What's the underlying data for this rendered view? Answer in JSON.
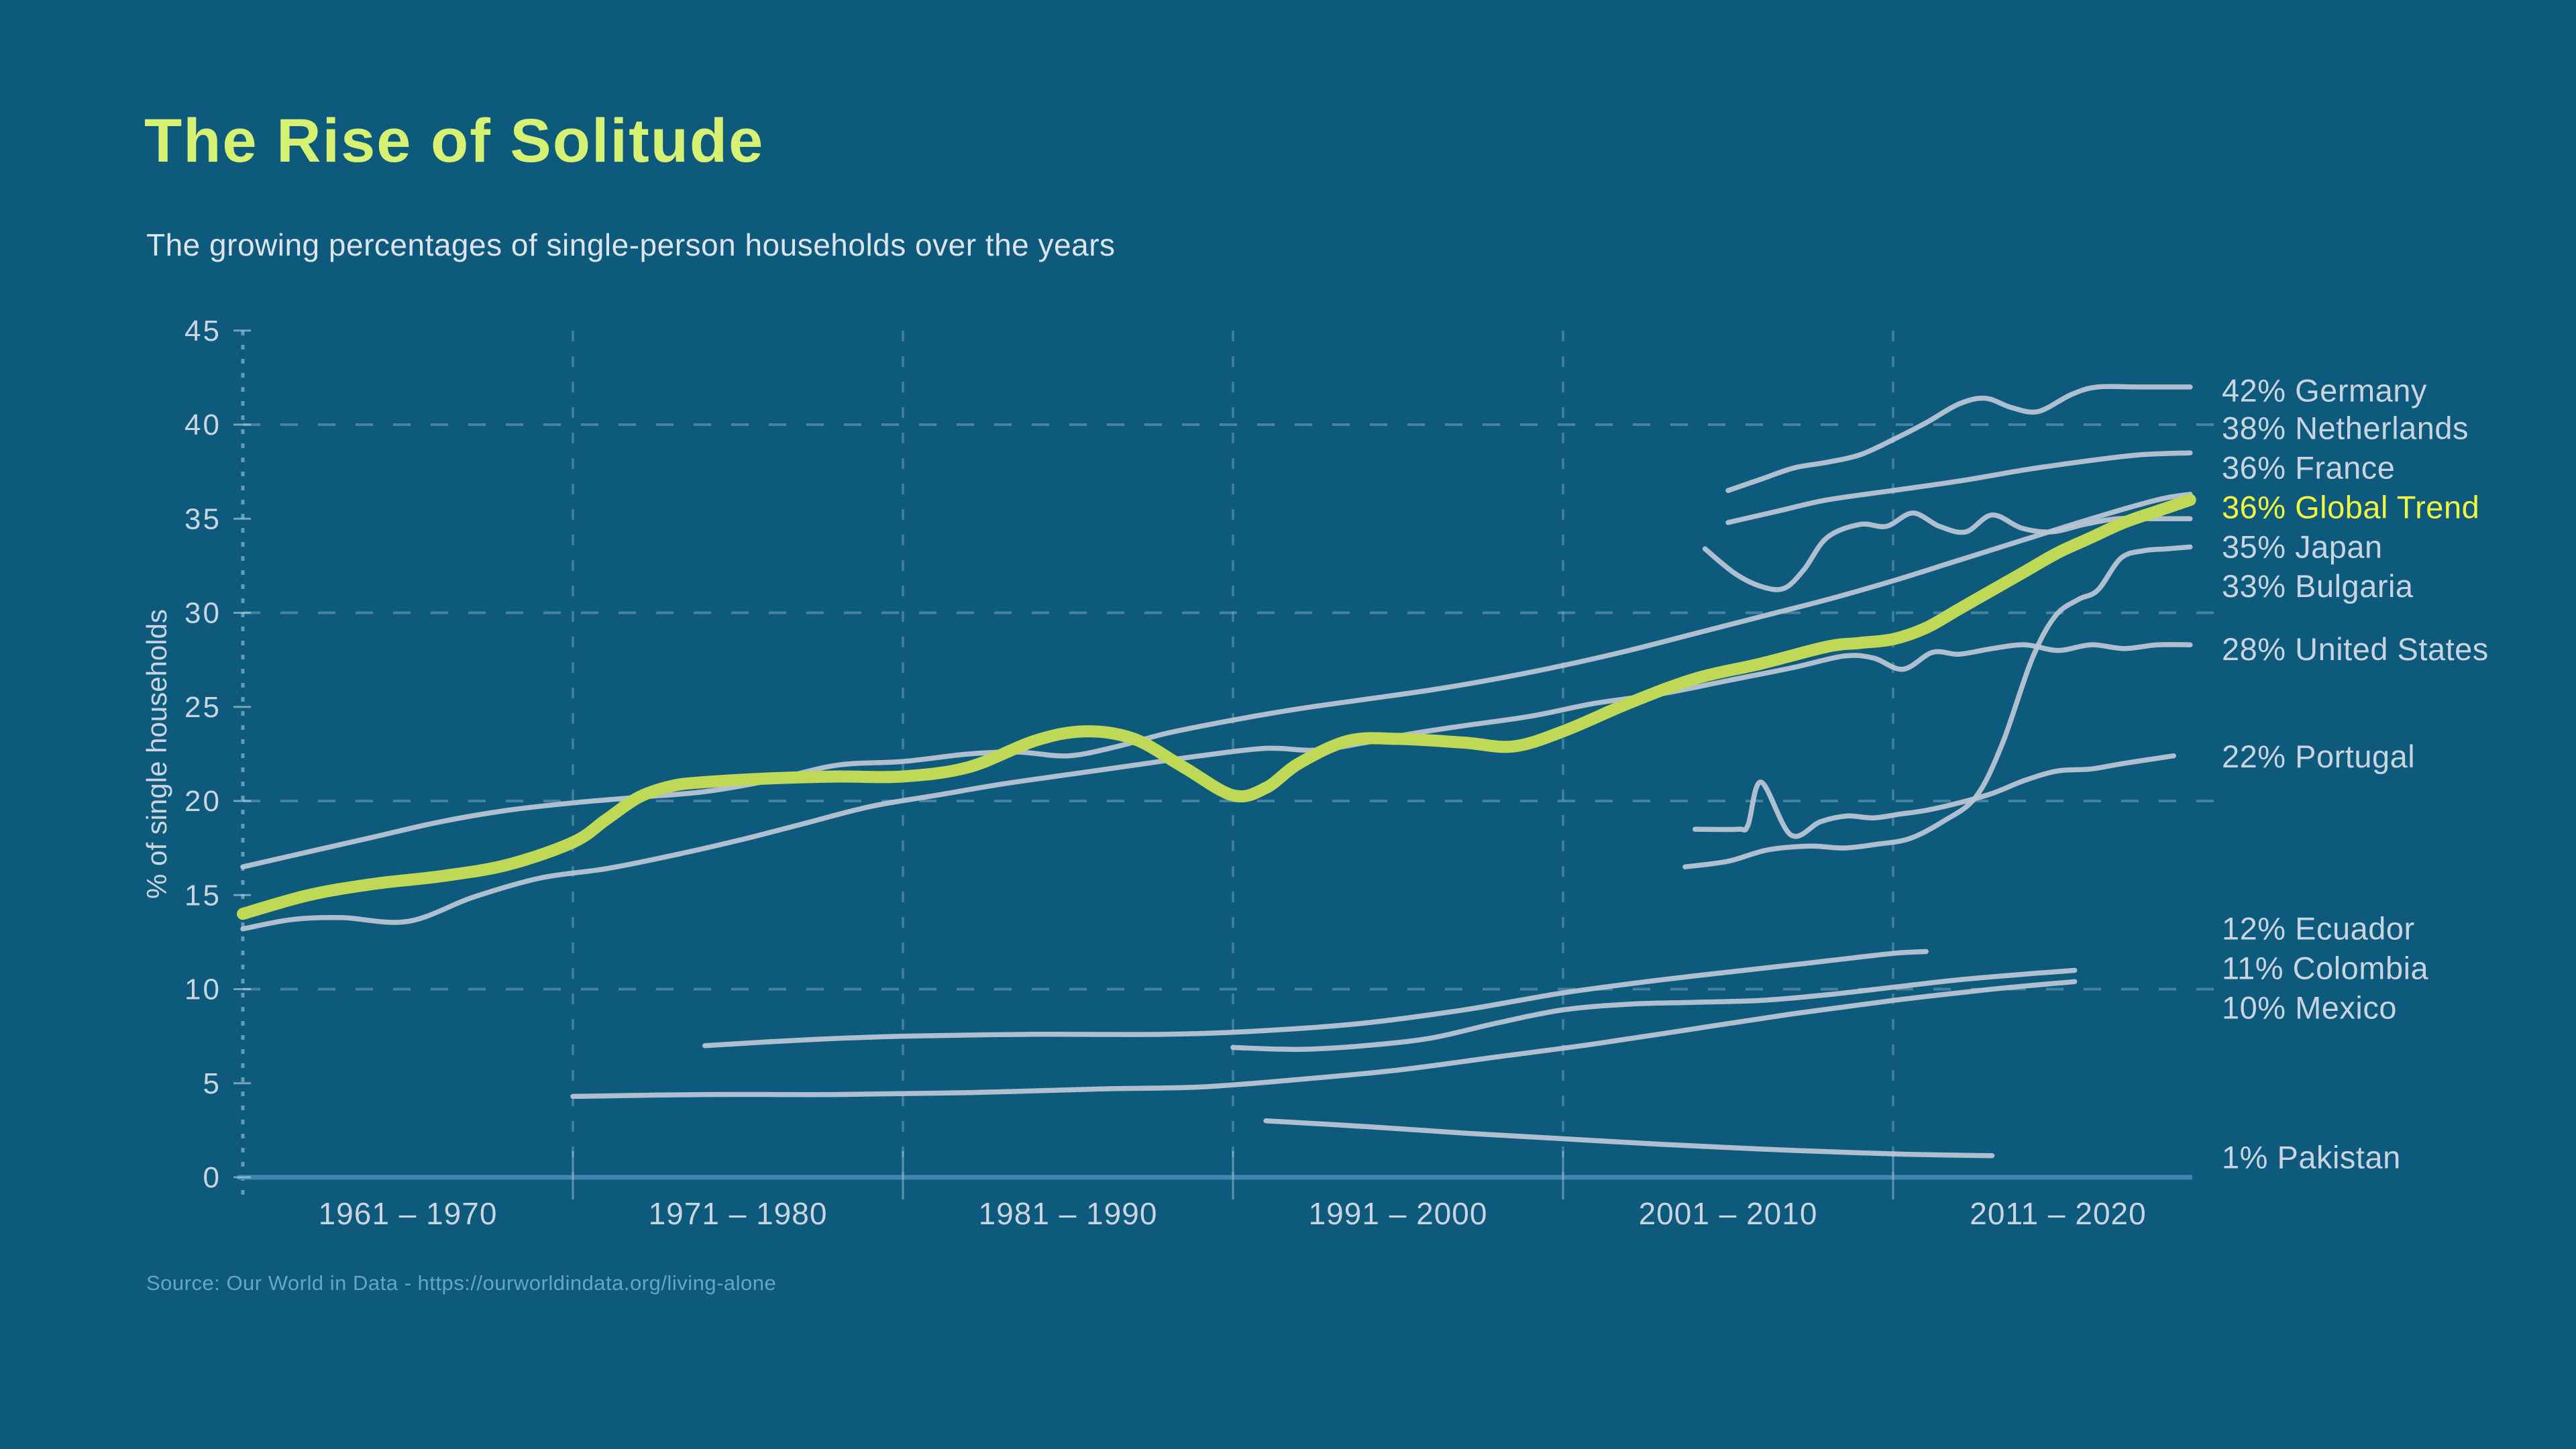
{
  "header": {
    "title": "The Rise of Solitude",
    "subtitle": "The growing percentages of single-person households over the years"
  },
  "footer": {
    "source": "Source: Our  World in Data - https://ourworldindata.org/living-alone"
  },
  "colors": {
    "background": "#0d5a7d",
    "title": "#d7f173",
    "subtitle": "#dde4ed",
    "axis_text": "#cad5e1",
    "grid_dash": "#8fb6cd",
    "axis_line": "#3e86ad",
    "tick": "#bed3e2",
    "line_gray": "#b9c5d4",
    "line_highlight": "#bfd957",
    "label_gray": "#c9d4e0",
    "label_highlight": "#f4f83f",
    "source": "#67a5c7"
  },
  "chart_data": {
    "type": "line",
    "title": "The Rise of Solitude",
    "xlabel": "",
    "ylabel": "% of single households",
    "ylim": [
      0,
      45
    ],
    "yticks": [
      0,
      5,
      10,
      15,
      20,
      25,
      30,
      35,
      40,
      45
    ],
    "grid_y": [
      10,
      20,
      30,
      40
    ],
    "grid_x_years": [
      1971,
      1981,
      1991,
      2001,
      2011
    ],
    "x_decade_labels": [
      "1961 – 1970",
      "1971 – 1980",
      "1981 – 1990",
      "1991 – 2000",
      "2001 – 2010",
      "2011 – 2020"
    ],
    "x_range_years": [
      1961,
      2020
    ],
    "legend_position": "right-edge-labels",
    "grid": true,
    "series": [
      {
        "name": "Germany",
        "label": "42% Germany",
        "final_value": 42,
        "highlight": false,
        "label_pct": 41.8,
        "points": [
          [
            2006,
            36.5
          ],
          [
            2007,
            37.1
          ],
          [
            2008,
            37.7
          ],
          [
            2009,
            38.0
          ],
          [
            2010,
            38.4
          ],
          [
            2011,
            39.2
          ],
          [
            2012,
            40.1
          ],
          [
            2013,
            41.1
          ],
          [
            2013.8,
            41.4
          ],
          [
            2014.6,
            40.9
          ],
          [
            2015.4,
            40.7
          ],
          [
            2016.4,
            41.6
          ],
          [
            2017.2,
            42.0
          ],
          [
            2018.5,
            42.0
          ],
          [
            2020,
            42.0
          ]
        ]
      },
      {
        "name": "Netherlands",
        "label": "38% Netherlands",
        "final_value": 38,
        "highlight": false,
        "label_pct": 39.8,
        "points": [
          [
            2006,
            34.8
          ],
          [
            2007.5,
            35.4
          ],
          [
            2009,
            36.0
          ],
          [
            2011,
            36.5
          ],
          [
            2013,
            37.0
          ],
          [
            2015,
            37.6
          ],
          [
            2017,
            38.1
          ],
          [
            2018.5,
            38.4
          ],
          [
            2020,
            38.5
          ]
        ]
      },
      {
        "name": "France",
        "label": "36% France",
        "final_value": 36,
        "highlight": false,
        "label_pct": 37.7,
        "points": [
          [
            1961,
            16.5
          ],
          [
            1963,
            17.3
          ],
          [
            1965,
            18.1
          ],
          [
            1967,
            18.9
          ],
          [
            1969,
            19.5
          ],
          [
            1971,
            19.9
          ],
          [
            1973,
            20.2
          ],
          [
            1975,
            20.5
          ],
          [
            1977,
            21.1
          ],
          [
            1979,
            21.9
          ],
          [
            1981,
            22.1
          ],
          [
            1983,
            22.5
          ],
          [
            1984.5,
            22.6
          ],
          [
            1986,
            22.4
          ],
          [
            1987.5,
            22.9
          ],
          [
            1989,
            23.6
          ],
          [
            1991,
            24.3
          ],
          [
            1993,
            24.9
          ],
          [
            1995,
            25.4
          ],
          [
            1997,
            25.9
          ],
          [
            1999,
            26.5
          ],
          [
            2001,
            27.2
          ],
          [
            2003,
            28.0
          ],
          [
            2005,
            28.9
          ],
          [
            2007,
            29.8
          ],
          [
            2009,
            30.7
          ],
          [
            2011,
            31.7
          ],
          [
            2013,
            32.8
          ],
          [
            2015,
            33.9
          ],
          [
            2017,
            35.0
          ],
          [
            2019,
            36.0
          ],
          [
            2020,
            36.3
          ]
        ]
      },
      {
        "name": "Global Trend",
        "label": "36% Global Trend",
        "final_value": 36,
        "highlight": true,
        "label_pct": 35.6,
        "points": [
          [
            1961,
            14.0
          ],
          [
            1963,
            15.0
          ],
          [
            1965,
            15.6
          ],
          [
            1967,
            16.0
          ],
          [
            1969,
            16.6
          ],
          [
            1971,
            17.8
          ],
          [
            1972,
            19.0
          ],
          [
            1973,
            20.2
          ],
          [
            1974,
            20.8
          ],
          [
            1975,
            21.0
          ],
          [
            1977,
            21.2
          ],
          [
            1979,
            21.3
          ],
          [
            1981,
            21.3
          ],
          [
            1983,
            21.8
          ],
          [
            1985,
            23.2
          ],
          [
            1986.5,
            23.7
          ],
          [
            1988,
            23.3
          ],
          [
            1989.5,
            21.8
          ],
          [
            1991,
            20.3
          ],
          [
            1992,
            20.7
          ],
          [
            1993,
            22.0
          ],
          [
            1994.5,
            23.2
          ],
          [
            1996,
            23.3
          ],
          [
            1998,
            23.1
          ],
          [
            1999.5,
            22.9
          ],
          [
            2001,
            23.7
          ],
          [
            2003,
            25.2
          ],
          [
            2005,
            26.5
          ],
          [
            2007,
            27.3
          ],
          [
            2009,
            28.2
          ],
          [
            2010,
            28.4
          ],
          [
            2011,
            28.6
          ],
          [
            2012,
            29.2
          ],
          [
            2013,
            30.2
          ],
          [
            2014,
            31.2
          ],
          [
            2015,
            32.2
          ],
          [
            2016,
            33.2
          ],
          [
            2017,
            34.0
          ],
          [
            2018,
            34.8
          ],
          [
            2019,
            35.4
          ],
          [
            2020,
            36.0
          ]
        ]
      },
      {
        "name": "Japan",
        "label": "35% Japan",
        "final_value": 35,
        "highlight": false,
        "label_pct": 33.5,
        "points": [
          [
            2005.3,
            33.4
          ],
          [
            2006.2,
            32.1
          ],
          [
            2007,
            31.4
          ],
          [
            2007.7,
            31.3
          ],
          [
            2008.3,
            32.3
          ],
          [
            2009,
            34.0
          ],
          [
            2010,
            34.7
          ],
          [
            2010.8,
            34.6
          ],
          [
            2011.6,
            35.3
          ],
          [
            2012.4,
            34.6
          ],
          [
            2013.2,
            34.3
          ],
          [
            2014,
            35.2
          ],
          [
            2014.9,
            34.5
          ],
          [
            2015.8,
            34.3
          ],
          [
            2016.8,
            34.7
          ],
          [
            2017.8,
            35.0
          ],
          [
            2019,
            35.0
          ],
          [
            2020,
            35.0
          ]
        ]
      },
      {
        "name": "Bulgaria",
        "label": "33% Bulgaria",
        "final_value": 33,
        "highlight": false,
        "label_pct": 31.4,
        "points": [
          [
            2004.7,
            16.5
          ],
          [
            2006,
            16.8
          ],
          [
            2007.2,
            17.4
          ],
          [
            2008.5,
            17.6
          ],
          [
            2009.5,
            17.5
          ],
          [
            2010.5,
            17.7
          ],
          [
            2011.5,
            18.0
          ],
          [
            2012.5,
            18.9
          ],
          [
            2013.5,
            20.2
          ],
          [
            2014.3,
            23.0
          ],
          [
            2015.2,
            27.5
          ],
          [
            2015.9,
            29.8
          ],
          [
            2016.6,
            30.7
          ],
          [
            2017.2,
            31.2
          ],
          [
            2017.9,
            32.9
          ],
          [
            2018.6,
            33.3
          ],
          [
            2019.3,
            33.4
          ],
          [
            2020,
            33.5
          ]
        ]
      },
      {
        "name": "United States",
        "label": "28% United States",
        "final_value": 28,
        "highlight": false,
        "label_pct": 28.05,
        "points": [
          [
            1961,
            13.2
          ],
          [
            1962.5,
            13.7
          ],
          [
            1964,
            13.8
          ],
          [
            1966,
            13.6
          ],
          [
            1968,
            14.9
          ],
          [
            1970,
            15.9
          ],
          [
            1972,
            16.4
          ],
          [
            1974,
            17.1
          ],
          [
            1976,
            17.9
          ],
          [
            1978,
            18.8
          ],
          [
            1980,
            19.7
          ],
          [
            1982,
            20.3
          ],
          [
            1984,
            20.9
          ],
          [
            1986,
            21.4
          ],
          [
            1988,
            21.9
          ],
          [
            1990,
            22.4
          ],
          [
            1992,
            22.8
          ],
          [
            1993.5,
            22.7
          ],
          [
            1995,
            23.1
          ],
          [
            1996.5,
            23.6
          ],
          [
            1998,
            24.0
          ],
          [
            2000,
            24.5
          ],
          [
            2002,
            25.2
          ],
          [
            2004,
            25.7
          ],
          [
            2006,
            26.4
          ],
          [
            2008,
            27.1
          ],
          [
            2009.5,
            27.7
          ],
          [
            2010.4,
            27.6
          ],
          [
            2011.3,
            27.0
          ],
          [
            2012.2,
            27.9
          ],
          [
            2013,
            27.8
          ],
          [
            2014,
            28.1
          ],
          [
            2015,
            28.3
          ],
          [
            2016,
            28.0
          ],
          [
            2017,
            28.3
          ],
          [
            2018,
            28.1
          ],
          [
            2019,
            28.3
          ],
          [
            2020,
            28.3
          ]
        ]
      },
      {
        "name": "Portugal",
        "label": "22% Portugal",
        "final_value": 22,
        "highlight": false,
        "label_pct": 22.35,
        "points": [
          [
            2005,
            18.5
          ],
          [
            2006.3,
            18.5
          ],
          [
            2006.6,
            18.7
          ],
          [
            2007,
            21.0
          ],
          [
            2007.9,
            18.2
          ],
          [
            2008.8,
            18.9
          ],
          [
            2009.6,
            19.2
          ],
          [
            2010.4,
            19.1
          ],
          [
            2011.2,
            19.3
          ],
          [
            2012,
            19.5
          ],
          [
            2013,
            19.9
          ],
          [
            2014,
            20.4
          ],
          [
            2015,
            21.1
          ],
          [
            2016,
            21.6
          ],
          [
            2017,
            21.7
          ],
          [
            2018,
            22.0
          ],
          [
            2019.5,
            22.4
          ]
        ]
      },
      {
        "name": "Ecuador",
        "label": "12% Ecuador",
        "final_value": 12,
        "highlight": false,
        "label_pct": 13.2,
        "points": [
          [
            1975,
            7.0
          ],
          [
            1978,
            7.3
          ],
          [
            1981,
            7.5
          ],
          [
            1985,
            7.6
          ],
          [
            1989,
            7.6
          ],
          [
            1992,
            7.8
          ],
          [
            1995,
            8.2
          ],
          [
            1998,
            8.9
          ],
          [
            2001,
            9.8
          ],
          [
            2004,
            10.5
          ],
          [
            2007,
            11.1
          ],
          [
            2009,
            11.5
          ],
          [
            2011,
            11.9
          ],
          [
            2012,
            12.0
          ]
        ]
      },
      {
        "name": "Colombia",
        "label": "11% Colombia",
        "final_value": 11,
        "highlight": false,
        "label_pct": 11.1,
        "points": [
          [
            1991,
            6.9
          ],
          [
            1993,
            6.8
          ],
          [
            1995,
            7.0
          ],
          [
            1997,
            7.4
          ],
          [
            1999,
            8.2
          ],
          [
            2001,
            8.9
          ],
          [
            2003,
            9.2
          ],
          [
            2005,
            9.3
          ],
          [
            2007,
            9.4
          ],
          [
            2009,
            9.7
          ],
          [
            2011,
            10.1
          ],
          [
            2013,
            10.5
          ],
          [
            2015,
            10.8
          ],
          [
            2016.5,
            11.0
          ]
        ]
      },
      {
        "name": "Mexico",
        "label": "10% Mexico",
        "final_value": 10,
        "highlight": false,
        "label_pct": 9.0,
        "points": [
          [
            1971,
            4.3
          ],
          [
            1975,
            4.4
          ],
          [
            1979,
            4.4
          ],
          [
            1983,
            4.5
          ],
          [
            1987,
            4.7
          ],
          [
            1990,
            4.8
          ],
          [
            1993,
            5.2
          ],
          [
            1996,
            5.7
          ],
          [
            1999,
            6.4
          ],
          [
            2002,
            7.1
          ],
          [
            2005,
            7.9
          ],
          [
            2008,
            8.7
          ],
          [
            2011,
            9.4
          ],
          [
            2014,
            10.0
          ],
          [
            2016.5,
            10.4
          ]
        ]
      },
      {
        "name": "Pakistan",
        "label": "1% Pakistan",
        "final_value": 1,
        "highlight": false,
        "label_pct": 1.05,
        "points": [
          [
            1992,
            3.0
          ],
          [
            1995,
            2.7
          ],
          [
            1998,
            2.35
          ],
          [
            2001,
            2.05
          ],
          [
            2004,
            1.75
          ],
          [
            2007,
            1.5
          ],
          [
            2010,
            1.3
          ],
          [
            2012,
            1.2
          ],
          [
            2014,
            1.15
          ]
        ]
      }
    ]
  }
}
